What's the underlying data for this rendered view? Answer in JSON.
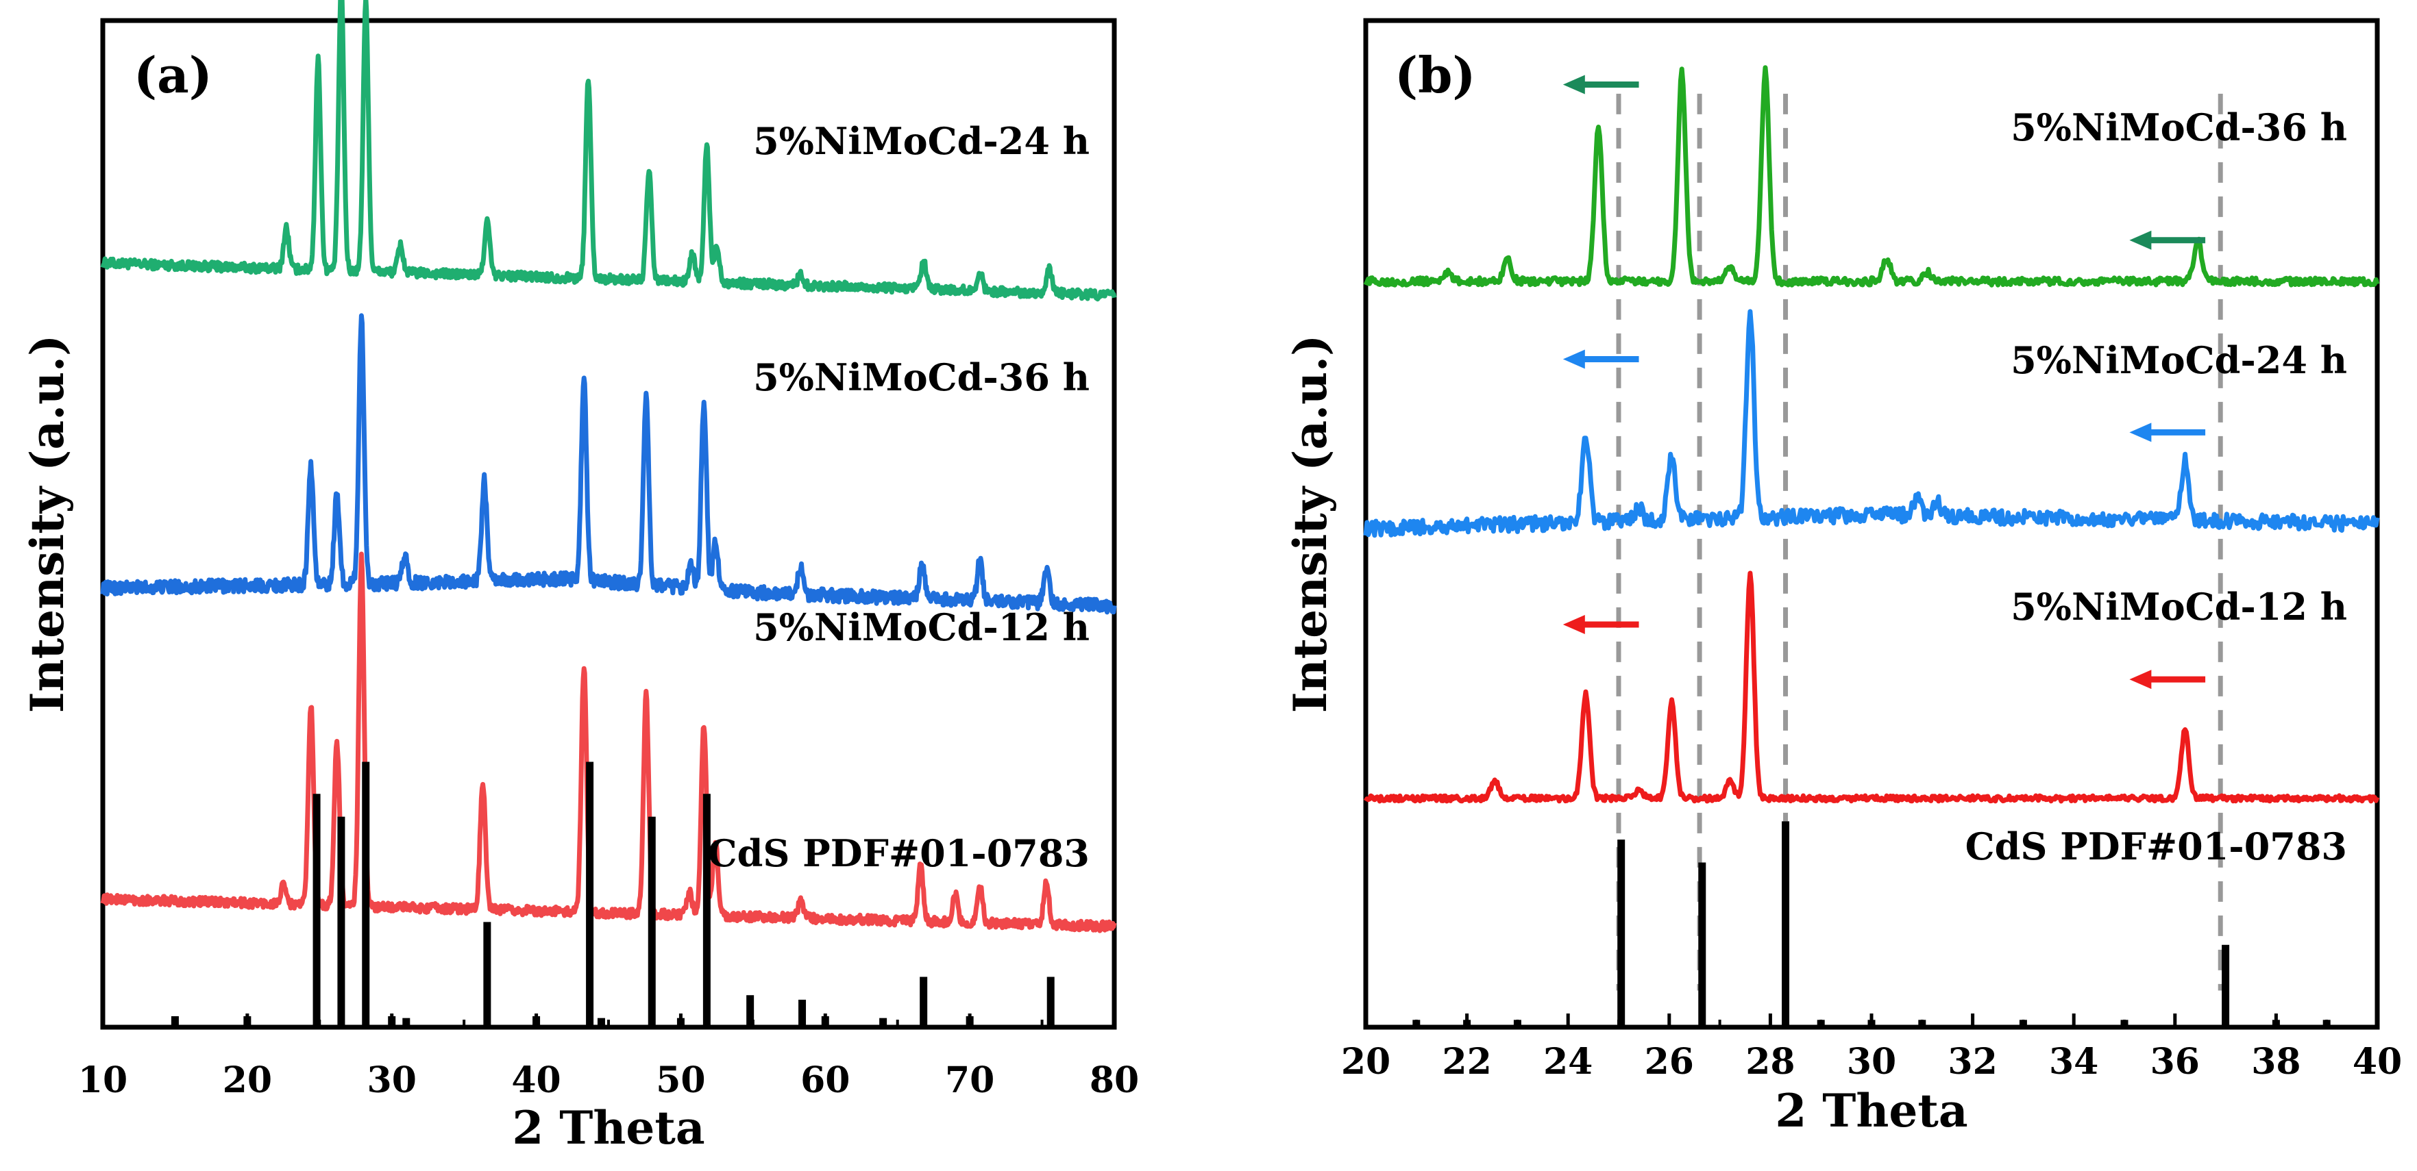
{
  "chart_data": [
    {
      "panel": "(a)",
      "type": "line",
      "xlabel": "2 Theta",
      "ylabel": "Intensity (a.u.)",
      "xlim": [
        10,
        80
      ],
      "xticks": [
        "10",
        "20",
        "30",
        "40",
        "50",
        "60",
        "70",
        "80"
      ],
      "ylim": [
        0,
        11
      ],
      "series": [
        {
          "name": "5%NiMoCd-24 h",
          "color": "#1fae70",
          "offset": 8.0,
          "noise_amplitude": 0.05,
          "baseline_x": [
            10,
            80
          ],
          "baseline_y": [
            0.35,
            0.0
          ],
          "peaks_x": [
            22.7,
            24.9,
            26.5,
            28.2,
            30.6,
            36.6,
            43.6,
            47.8,
            50.8,
            51.8,
            52.5,
            58.3,
            66.8,
            70.7,
            75.5
          ],
          "peaks_h": [
            0.45,
            2.3,
            3.1,
            2.95,
            0.3,
            0.6,
            2.2,
            1.2,
            0.3,
            1.5,
            0.4,
            0.12,
            0.3,
            0.2,
            0.25
          ]
        },
        {
          "name": "5%NiMoCd-36 h",
          "color": "#1f6fdc",
          "offset": 4.6,
          "noise_amplitude": 0.07,
          "baseline_x": [
            10,
            30,
            42,
            55,
            80
          ],
          "baseline_y": [
            0.2,
            0.25,
            0.3,
            0.15,
            0.0
          ],
          "peaks_x": [
            24.4,
            26.2,
            27.9,
            30.9,
            36.4,
            43.3,
            47.6,
            50.7,
            51.6,
            52.4,
            58.3,
            66.7,
            70.7,
            75.3
          ],
          "peaks_h": [
            1.3,
            1.0,
            2.9,
            0.3,
            1.1,
            2.2,
            2.05,
            0.3,
            2.05,
            0.55,
            0.3,
            0.4,
            0.45,
            0.4
          ]
        },
        {
          "name": "5%NiMoCd-12 h",
          "color": "#f0474a",
          "offset": 1.1,
          "noise_amplitude": 0.05,
          "baseline_x": [
            10,
            80
          ],
          "baseline_y": [
            0.3,
            0.0
          ],
          "peaks_x": [
            22.5,
            24.4,
            26.2,
            27.9,
            36.3,
            43.3,
            47.6,
            50.6,
            51.6,
            52.4,
            58.3,
            66.6,
            69.0,
            70.7,
            75.3
          ],
          "peaks_h": [
            0.2,
            2.2,
            1.8,
            3.8,
            1.4,
            2.7,
            2.4,
            0.25,
            2.1,
            0.8,
            0.2,
            0.6,
            0.3,
            0.4,
            0.45
          ]
        }
      ],
      "reference": {
        "label": "CdS PDF#01-0783",
        "color": "#000000",
        "positions": [
          15,
          20,
          24.8,
          26.5,
          28.2,
          30,
          31,
          36.6,
          40,
          43.7,
          44.5,
          48.0,
          50.0,
          51.8,
          54.8,
          58.4,
          60,
          64,
          66.8,
          70,
          75.6
        ],
        "heights": [
          0.12,
          0.12,
          2.55,
          2.3,
          2.9,
          0.12,
          0.1,
          1.15,
          0.12,
          2.9,
          0.1,
          2.3,
          0.1,
          2.55,
          0.35,
          0.3,
          0.12,
          0.1,
          0.55,
          0.12,
          0.55
        ]
      }
    },
    {
      "panel": "(b)",
      "type": "line",
      "xlabel": "2 Theta",
      "ylabel": "Intensity (a.u.)",
      "xlim": [
        20,
        40
      ],
      "xticks": [
        "20",
        "22",
        "24",
        "26",
        "28",
        "30",
        "32",
        "34",
        "36",
        "38",
        "40"
      ],
      "ylim": [
        0,
        11
      ],
      "series": [
        {
          "name": "5%NiMoCd-36 h",
          "color": "#22aa22",
          "offset": 8.15,
          "noise_amplitude": 0.04,
          "baseline_x": [
            20,
            40
          ],
          "baseline_y": [
            0.0,
            0.0
          ],
          "peaks_x": [
            21.6,
            22.8,
            24.6,
            26.25,
            27.2,
            27.9,
            30.3,
            31.1,
            36.45
          ],
          "peaks_h": [
            0.1,
            0.25,
            1.7,
            2.3,
            0.15,
            2.3,
            0.25,
            0.1,
            0.45
          ]
        },
        {
          "name": "5%NiMoCd-24 h",
          "color": "#1e86f0",
          "offset": 5.45,
          "noise_amplitude": 0.08,
          "baseline_x": [
            20,
            30,
            40
          ],
          "baseline_y": [
            0.0,
            0.15,
            0.05
          ],
          "peaks_x": [
            24.35,
            25.4,
            26.05,
            27.6,
            30.9,
            31.3,
            36.2
          ],
          "peaks_h": [
            0.95,
            0.15,
            0.7,
            2.25,
            0.2,
            0.15,
            0.65
          ]
        },
        {
          "name": "5%NiMoCd-12 h",
          "color": "#ee1c1c",
          "offset": 2.5,
          "noise_amplitude": 0.03,
          "baseline_x": [
            20,
            40
          ],
          "baseline_y": [
            0.0,
            0.0
          ],
          "peaks_x": [
            22.55,
            24.35,
            25.4,
            26.05,
            27.2,
            27.6,
            36.2
          ],
          "peaks_h": [
            0.2,
            1.15,
            0.1,
            1.05,
            0.2,
            2.45,
            0.75
          ]
        }
      ],
      "reference": {
        "label": "CdS PDF#01-0783",
        "color": "#000000",
        "positions": [
          21,
          22,
          23,
          25.05,
          26.65,
          28.3,
          29,
          30,
          31,
          33,
          35,
          37.0,
          38,
          39
        ],
        "heights": [
          0.08,
          0.08,
          0.08,
          2.05,
          1.8,
          2.25,
          0.08,
          0.08,
          0.08,
          0.08,
          0.08,
          0.9,
          0.08,
          0.08
        ]
      },
      "guide_lines_x": [
        25.0,
        26.6,
        28.3,
        36.9
      ],
      "shift_arrows": [
        {
          "color": "#1b8a5a",
          "x_from": 25.4,
          "x_to": 23.9,
          "y": 10.3
        },
        {
          "color": "#1b8a5a",
          "x_from": 36.6,
          "x_to": 35.1,
          "y": 8.6
        },
        {
          "color": "#1e86f0",
          "x_from": 25.4,
          "x_to": 23.9,
          "y": 7.3
        },
        {
          "color": "#1e86f0",
          "x_from": 36.6,
          "x_to": 35.1,
          "y": 6.5
        },
        {
          "color": "#ee1c1c",
          "x_from": 25.4,
          "x_to": 23.9,
          "y": 4.4
        },
        {
          "color": "#ee1c1c",
          "x_from": 36.6,
          "x_to": 35.1,
          "y": 3.8
        }
      ]
    }
  ]
}
